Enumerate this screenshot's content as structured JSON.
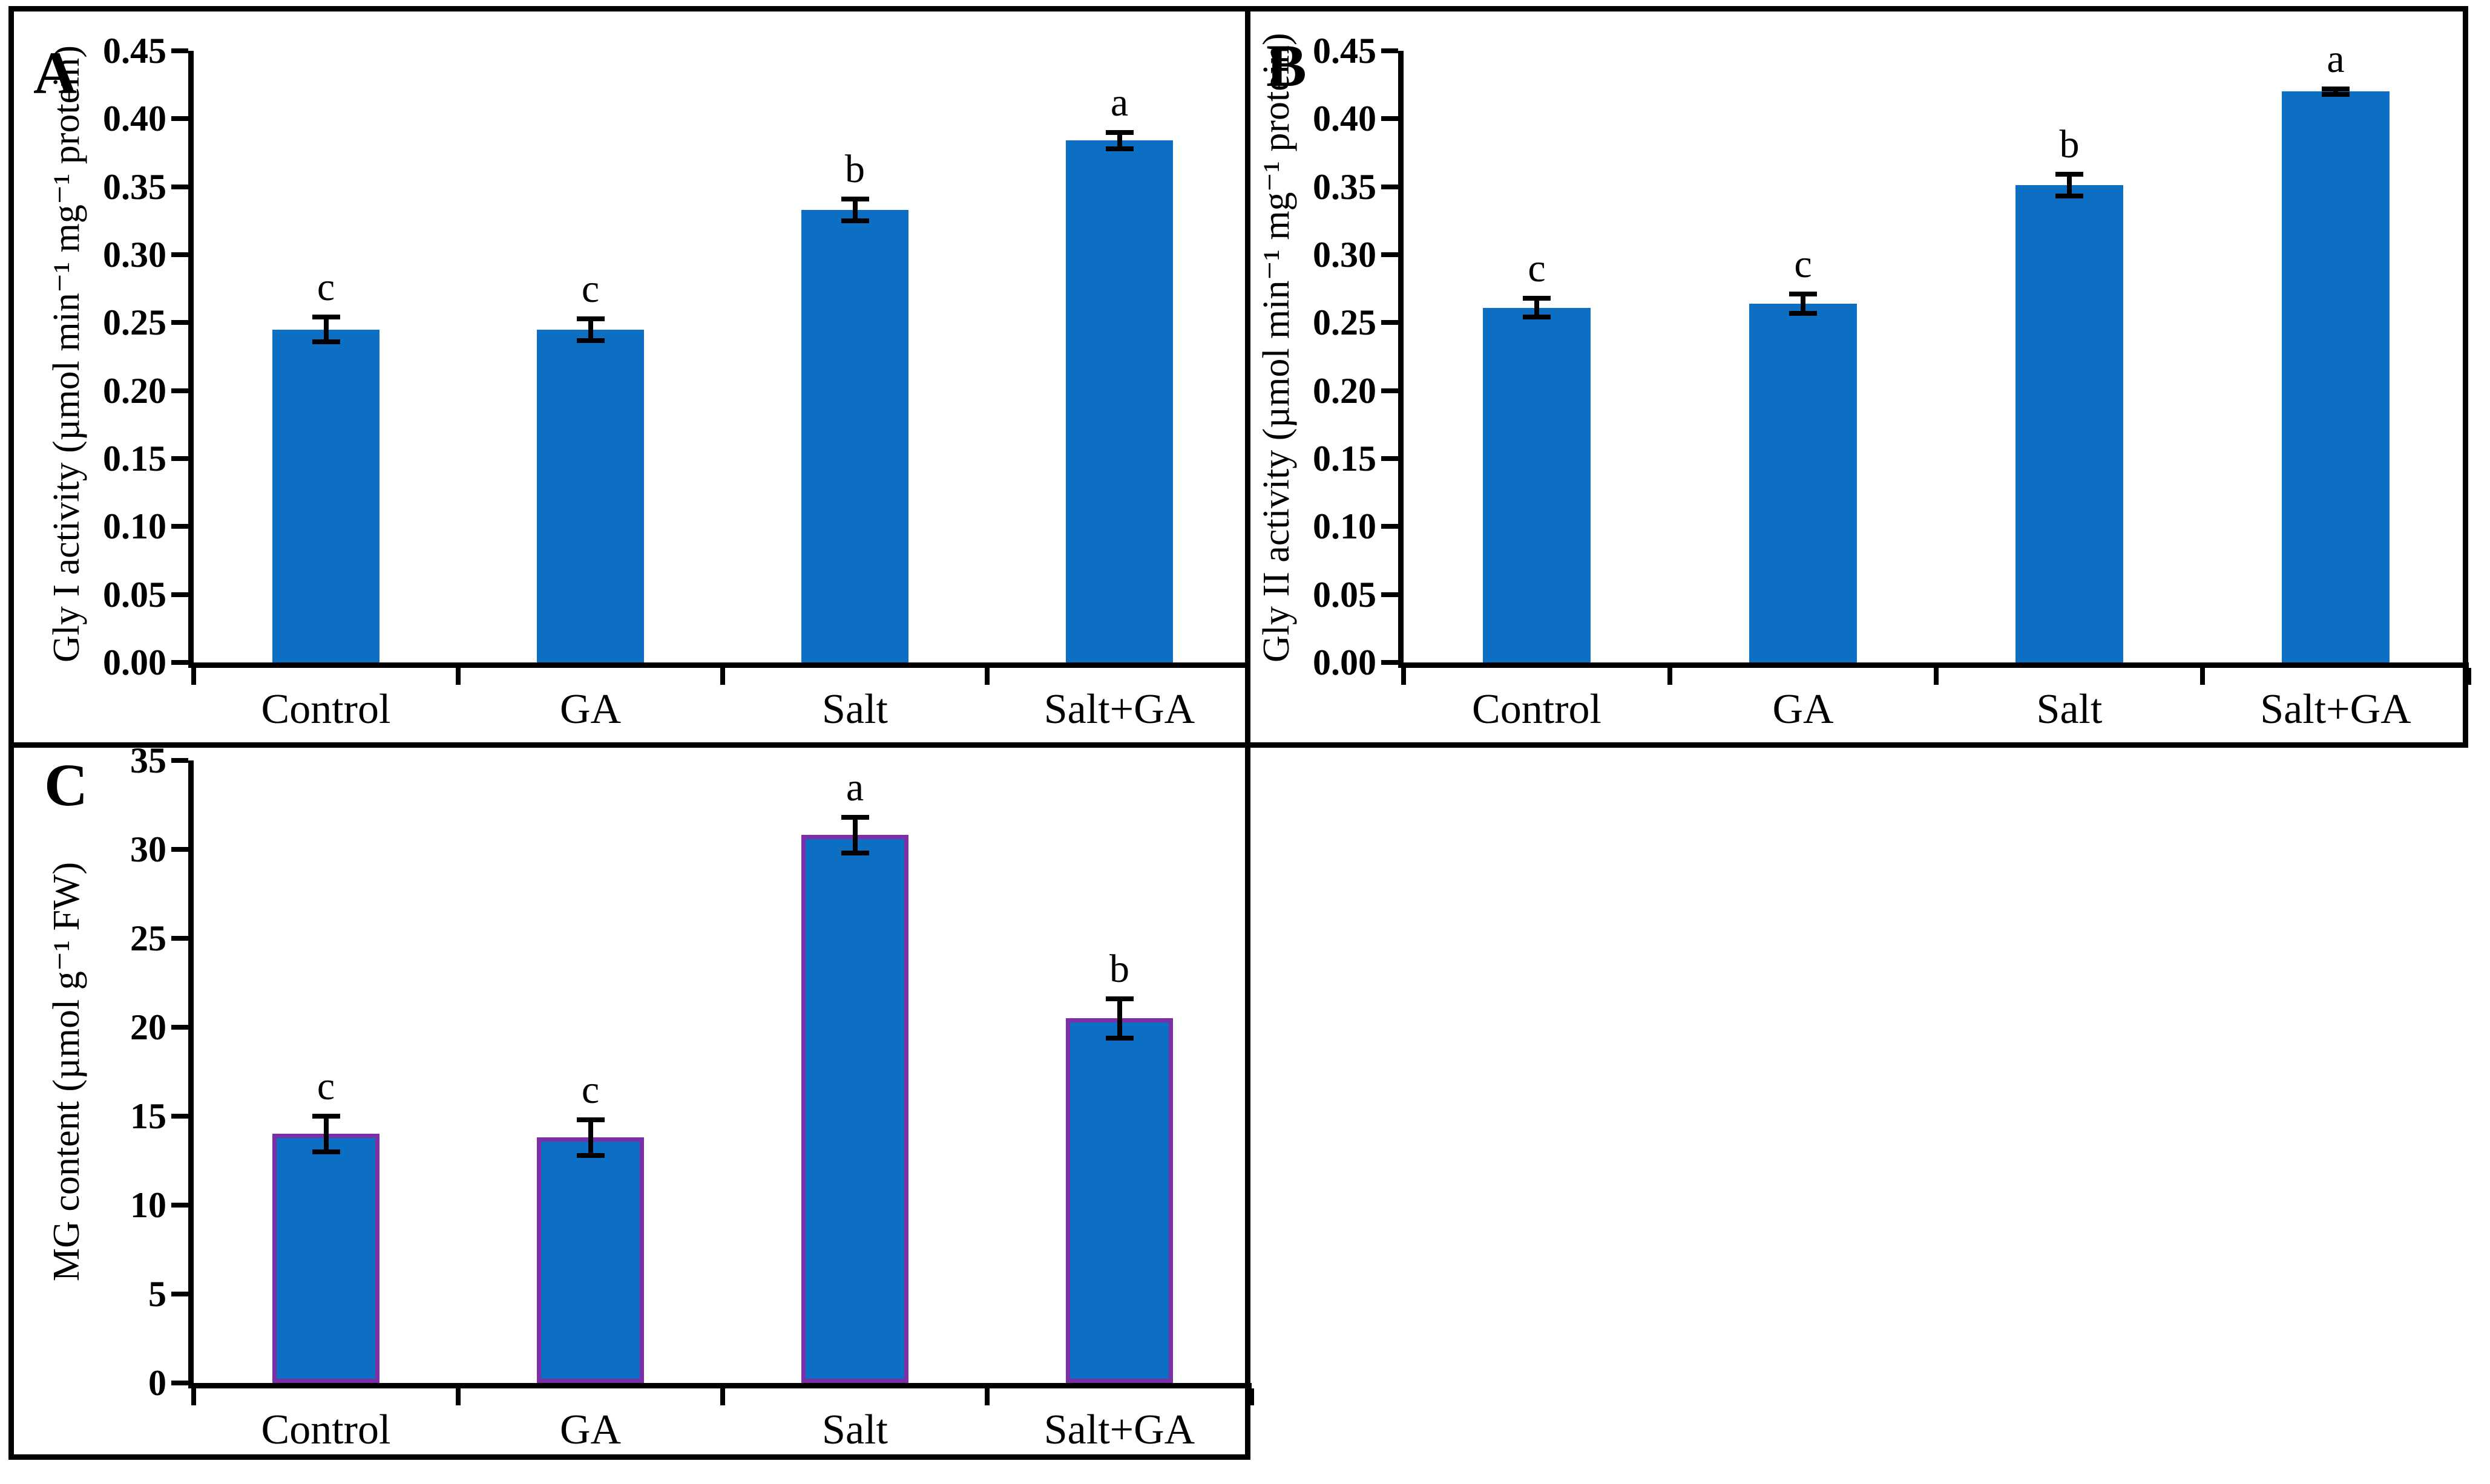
{
  "figure": {
    "background": "#ffffff",
    "border_color": "#000000",
    "panel_count": 3
  },
  "chart_data": [
    {
      "panel": "A",
      "type": "bar",
      "title": "",
      "xlabel": "",
      "ylabel": "Gly I activity (µmol min⁻¹ mg⁻¹ protein)",
      "categories": [
        "Control",
        "GA",
        "Salt",
        "Salt+GA"
      ],
      "values": [
        0.245,
        0.245,
        0.333,
        0.384
      ],
      "errors": [
        0.009,
        0.008,
        0.008,
        0.006
      ],
      "sig_letters": [
        "c",
        "c",
        "b",
        "a"
      ],
      "ylim": [
        0,
        0.45
      ],
      "ytick_step": 0.05,
      "ytick_decimals": 2,
      "grid": false,
      "legend": null,
      "bar_fill": "#0d6fc3",
      "bar_edge": null
    },
    {
      "panel": "B",
      "type": "bar",
      "title": "",
      "xlabel": "",
      "ylabel": "Gly II activity (µmol min⁻¹ mg⁻¹ protein)",
      "categories": [
        "Control",
        "GA",
        "Salt",
        "Salt+GA"
      ],
      "values": [
        0.261,
        0.264,
        0.351,
        0.42
      ],
      "errors": [
        0.007,
        0.007,
        0.008,
        0.002
      ],
      "sig_letters": [
        "c",
        "c",
        "b",
        "a"
      ],
      "ylim": [
        0,
        0.45
      ],
      "ytick_step": 0.05,
      "ytick_decimals": 2,
      "grid": false,
      "legend": null,
      "bar_fill": "#0d6fc3",
      "bar_edge": null
    },
    {
      "panel": "C",
      "type": "bar",
      "title": "",
      "xlabel": "",
      "ylabel": "MG content (µmol g⁻¹ FW)",
      "categories": [
        "Control",
        "GA",
        "Salt",
        "Salt+GA"
      ],
      "values": [
        14.0,
        13.8,
        30.8,
        20.5
      ],
      "errors": [
        1.0,
        1.0,
        1.0,
        1.1
      ],
      "sig_letters": [
        "c",
        "c",
        "a",
        "b"
      ],
      "ylim": [
        0,
        35
      ],
      "ytick_step": 5,
      "ytick_decimals": 0,
      "grid": false,
      "legend": null,
      "bar_fill": "#0d6fc3",
      "bar_edge": "#7d2fa8"
    }
  ]
}
